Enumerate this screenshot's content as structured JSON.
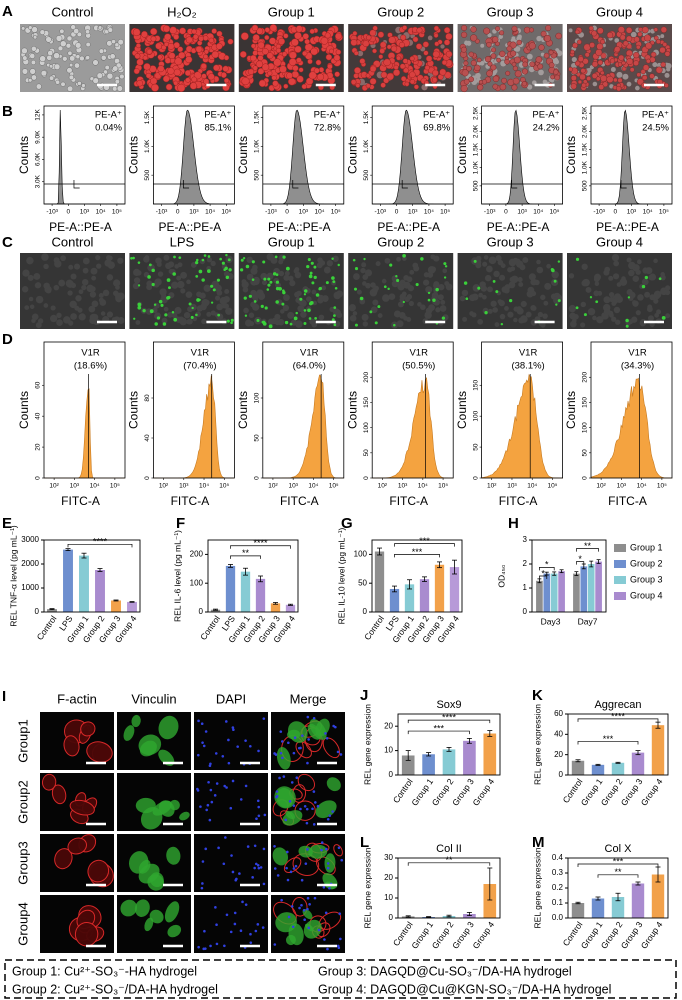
{
  "panel_A": {
    "letter": "A",
    "labels": [
      "Control",
      "H₂O₂",
      "Group 1",
      "Group 2",
      "Group 3",
      "Group 4"
    ]
  },
  "panel_B": {
    "letter": "B",
    "ylabel": "Counts",
    "xlabel": "PE-A::PE-A",
    "xticks": [
      "-10³",
      "0",
      "10³",
      "10⁴",
      "10⁵"
    ],
    "histograms": [
      {
        "gate": "PE-A⁺",
        "percent": "0.04%",
        "yticks": [
          "3.0K",
          "6.0K",
          "9.0K",
          "12K"
        ]
      },
      {
        "gate": "PE-A⁺",
        "percent": "85.1%",
        "yticks": [
          "500",
          "1.0K",
          "1.5K"
        ]
      },
      {
        "gate": "PE-A⁺",
        "percent": "72.8%",
        "yticks": [
          "500",
          "1.0K",
          "1.5K"
        ]
      },
      {
        "gate": "PE-A⁺",
        "percent": "69.8%",
        "yticks": [
          "500",
          "1.0K",
          "1.5K"
        ]
      },
      {
        "gate": "PE-A⁺",
        "percent": "24.2%",
        "yticks": [
          "500",
          "1.0K",
          "1.5K",
          "2.0K",
          "2.5K"
        ]
      },
      {
        "gate": "PE-A⁺",
        "percent": "24.5%",
        "yticks": [
          "500",
          "1.0K",
          "1.5K",
          "2.0K",
          "2.5K"
        ]
      }
    ]
  },
  "panel_C": {
    "letter": "C",
    "labels": [
      "Control",
      "LPS",
      "Group 1",
      "Group 2",
      "Group 3",
      "Group 4"
    ]
  },
  "panel_D": {
    "letter": "D",
    "ylabel": "Counts",
    "xlabel": "FITC-A",
    "xticks": [
      "10²",
      "10³",
      "10⁴",
      "10⁵"
    ],
    "histograms": [
      {
        "gate": "V1R",
        "percent": "(18.6%)",
        "yticks": [
          "0",
          "20",
          "40",
          "60"
        ]
      },
      {
        "gate": "V1R",
        "percent": "(70.4%)",
        "yticks": [
          "0",
          "40",
          "80"
        ]
      },
      {
        "gate": "V1R",
        "percent": "(64.0%)",
        "yticks": [
          "0",
          "50",
          "100"
        ]
      },
      {
        "gate": "V1R",
        "percent": "(50.5%)",
        "yticks": [
          "0",
          "50",
          "100",
          "150",
          "200"
        ]
      },
      {
        "gate": "V1R",
        "percent": "(38.1%)",
        "yticks": [
          "0",
          "50",
          "100",
          "150"
        ]
      },
      {
        "gate": "V1R",
        "percent": "(34.3%)",
        "yticks": [
          "0",
          "50",
          "100",
          "150",
          "200"
        ]
      }
    ]
  },
  "panel_I": {
    "letter": "I",
    "columns": [
      "F-actin",
      "Vinculin",
      "DAPI",
      "Merge"
    ],
    "rows": [
      "Group1",
      "Group2",
      "Group3",
      "Group4"
    ]
  },
  "chart_data": [
    {
      "letter": "E",
      "type": "bar",
      "ylabel": "REL TNF-α level (pg mL⁻¹)",
      "categories": [
        "Control",
        "LPS",
        "Group 1",
        "Group 2",
        "Group 3",
        "Group 4"
      ],
      "values": [
        120,
        2600,
        2350,
        1750,
        480,
        420
      ],
      "errors": [
        20,
        40,
        100,
        60,
        20,
        15
      ],
      "colors": [
        "#8e8e8e",
        "#6e8fcf",
        "#86cbd4",
        "#a98bcf",
        "#f2a14a",
        "#b79ad8"
      ],
      "ylim": [
        0,
        3000
      ],
      "yticks": [
        0,
        1000,
        2000,
        3000
      ],
      "significance": [
        "****"
      ]
    },
    {
      "letter": "F",
      "type": "bar",
      "ylabel": "REL IL-6 level (pg mL⁻¹)",
      "categories": [
        "Control",
        "LPS",
        "Group 1",
        "Group 2",
        "Group 3",
        "Group 4"
      ],
      "values": [
        8,
        160,
        140,
        115,
        30,
        25
      ],
      "errors": [
        2,
        5,
        12,
        10,
        3,
        2
      ],
      "colors": [
        "#8e8e8e",
        "#6e8fcf",
        "#86cbd4",
        "#a98bcf",
        "#f2a14a",
        "#b79ad8"
      ],
      "ylim": [
        0,
        250
      ],
      "yticks": [
        0,
        100,
        200
      ],
      "significance": [
        "**",
        "****"
      ]
    },
    {
      "letter": "G",
      "type": "bar",
      "ylabel": "REL IL-10 level (pg mL⁻¹)",
      "categories": [
        "Control",
        "LPS",
        "Group 1",
        "Group 2",
        "Group 3",
        "Group 4"
      ],
      "values": [
        105,
        40,
        48,
        57,
        82,
        78
      ],
      "errors": [
        6,
        5,
        8,
        4,
        5,
        12
      ],
      "colors": [
        "#8e8e8e",
        "#6e8fcf",
        "#86cbd4",
        "#a98bcf",
        "#f2a14a",
        "#b79ad8"
      ],
      "ylim": [
        0,
        125
      ],
      "yticks": [
        0,
        50,
        100
      ],
      "significance": [
        "***",
        "***"
      ]
    },
    {
      "letter": "H",
      "type": "bar",
      "ylabel": "OD₄₅₀",
      "categories": [
        "Day3",
        "Day7"
      ],
      "series": [
        {
          "name": "Group 1",
          "color": "#8e8e8e",
          "values": [
            1.3,
            1.6
          ],
          "errors": [
            0.08,
            0.08
          ]
        },
        {
          "name": "Group 2",
          "color": "#6e8fcf",
          "values": [
            1.6,
            1.9
          ],
          "errors": [
            0.06,
            0.1
          ]
        },
        {
          "name": "Group 3",
          "color": "#86cbd4",
          "values": [
            1.6,
            2.0
          ],
          "errors": [
            0.07,
            0.12
          ]
        },
        {
          "name": "Group 4",
          "color": "#a98bcf",
          "values": [
            1.7,
            2.1
          ],
          "errors": [
            0.06,
            0.08
          ]
        }
      ],
      "ylim": [
        0,
        3
      ],
      "yticks": [
        0,
        1,
        2,
        3
      ],
      "significance": [
        "*",
        "*",
        "*",
        "**"
      ]
    },
    {
      "letter": "J",
      "type": "bar",
      "title": "Sox9",
      "ylabel": "REL gene expression",
      "categories": [
        "Control",
        "Group 1",
        "Group 2",
        "Group 3",
        "Group 4"
      ],
      "values": [
        8,
        8.5,
        10.5,
        14,
        17
      ],
      "errors": [
        2,
        0.7,
        0.8,
        1,
        1.2
      ],
      "colors": [
        "#8e8e8e",
        "#6e8fcf",
        "#86cbd4",
        "#a98bcf",
        "#f2a14a"
      ],
      "ylim": [
        0,
        25
      ],
      "yticks": [
        0,
        10,
        20
      ],
      "significance": [
        "***",
        "****"
      ]
    },
    {
      "letter": "K",
      "type": "bar",
      "title": "Aggrecan",
      "ylabel": "REL gene expression",
      "categories": [
        "Control",
        "Group 1",
        "Group 2",
        "Group 3",
        "Group 4"
      ],
      "values": [
        14,
        10,
        12,
        22,
        49
      ],
      "errors": [
        1,
        0.5,
        0.5,
        2,
        3
      ],
      "colors": [
        "#8e8e8e",
        "#6e8fcf",
        "#86cbd4",
        "#a98bcf",
        "#f2a14a"
      ],
      "ylim": [
        0,
        60
      ],
      "yticks": [
        0,
        20,
        40,
        60
      ],
      "significance": [
        "***",
        "****"
      ]
    },
    {
      "letter": "L",
      "type": "bar",
      "title": "Col II",
      "ylabel": "REL gene expression",
      "categories": [
        "Control",
        "Group 1",
        "Group 2",
        "Group 3",
        "Group 4"
      ],
      "values": [
        0.8,
        0.5,
        1,
        2,
        17
      ],
      "errors": [
        0.3,
        0.2,
        0.4,
        0.8,
        8
      ],
      "colors": [
        "#8e8e8e",
        "#6e8fcf",
        "#86cbd4",
        "#a98bcf",
        "#f2a14a"
      ],
      "ylim": [
        0,
        30
      ],
      "yticks": [
        0,
        10,
        20,
        30
      ],
      "significance": [
        "**"
      ]
    },
    {
      "letter": "M",
      "type": "bar",
      "title": "Col X",
      "ylabel": "REL gene expression",
      "categories": [
        "Control",
        "Group 1",
        "Group 2",
        "Group 3",
        "Group 4"
      ],
      "values": [
        0.1,
        0.13,
        0.14,
        0.23,
        0.29
      ],
      "errors": [
        0.005,
        0.01,
        0.025,
        0.01,
        0.05
      ],
      "colors": [
        "#8e8e8e",
        "#6e8fcf",
        "#86cbd4",
        "#a98bcf",
        "#f2a14a"
      ],
      "ylim": [
        0,
        0.4
      ],
      "yticks": [
        {
          "value": 0,
          "label": "0.0"
        },
        0.1,
        0.2,
        0.3,
        0.4
      ],
      "significance": [
        "***",
        "**"
      ]
    }
  ],
  "legend_box": {
    "items": [
      "Group 1: Cu²⁺-SO₃⁻-HA hydrogel",
      "Group 2: Cu²⁺-SO₃⁻/DA-HA hydrogel",
      "Group 3: DAGQD@Cu-SO₃⁻/DA-HA hydrogel",
      "Group 4: DAGQD@Cu@KGN-SO₃⁻/DA-HA hydrogel"
    ]
  }
}
